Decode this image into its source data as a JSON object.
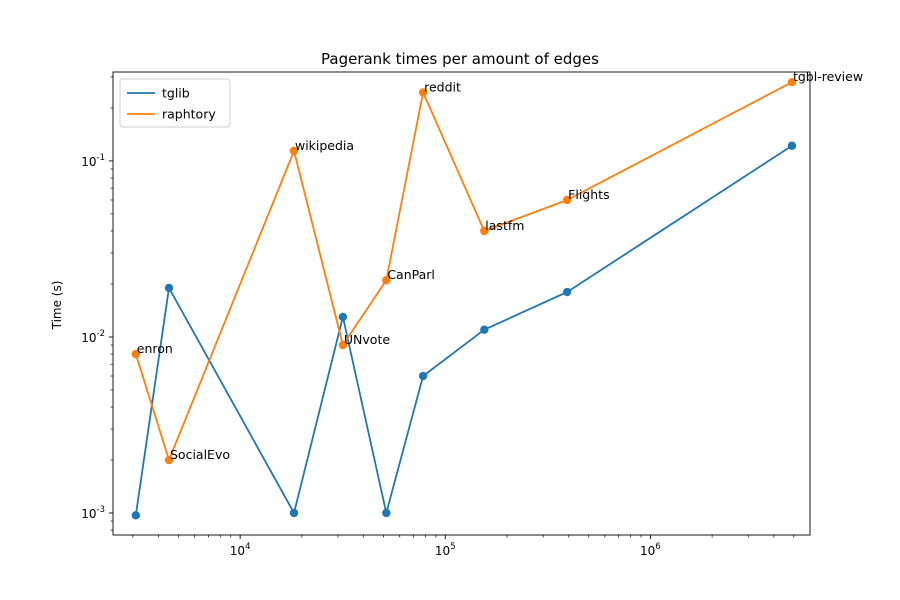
{
  "chart_data": {
    "type": "line",
    "title": "Pagerank times per amount of edges",
    "xlabel": "",
    "ylabel": "Time (s)",
    "xscale": "log",
    "yscale": "log",
    "xlim": [
      2400,
      6000000
    ],
    "ylim": [
      0.00075,
      0.32
    ],
    "grid": false,
    "legend_position": "top-left",
    "x_tick_labels": [
      "10",
      "10",
      "10"
    ],
    "x_tick_exponents": [
      "4",
      "5",
      "6"
    ],
    "x_tick_values": [
      10000,
      100000,
      1000000
    ],
    "y_tick_labels": [
      "10",
      "10",
      "10"
    ],
    "y_tick_exponents": [
      "-3",
      "-2",
      "-1"
    ],
    "y_tick_values": [
      0.001,
      0.01,
      0.1
    ],
    "series": [
      {
        "name": "tglib",
        "color": "#1f77b4",
        "x": [
          3100,
          4500,
          18300,
          31700,
          51600,
          78000,
          155000,
          393000,
          4900000
        ],
        "y": [
          0.00097,
          0.019,
          0.001,
          0.013,
          0.001,
          0.006,
          0.011,
          0.018,
          0.122
        ]
      },
      {
        "name": "raphtory",
        "color": "#ff7f0e",
        "x": [
          3100,
          4500,
          18300,
          31700,
          51600,
          78000,
          155000,
          393000,
          4900000
        ],
        "y": [
          0.008,
          0.002,
          0.114,
          0.009,
          0.021,
          0.245,
          0.04,
          0.06,
          0.28
        ]
      }
    ],
    "annotations": [
      {
        "text": "enron",
        "x": 3100,
        "y": 0.008
      },
      {
        "text": "SocialEvo",
        "x": 4500,
        "y": 0.002
      },
      {
        "text": "wikipedia",
        "x": 18300,
        "y": 0.114
      },
      {
        "text": "UNvote",
        "x": 31700,
        "y": 0.009
      },
      {
        "text": "CanParl",
        "x": 51600,
        "y": 0.021
      },
      {
        "text": "reddit",
        "x": 78000,
        "y": 0.245
      },
      {
        "text": "lastfm",
        "x": 155000,
        "y": 0.04
      },
      {
        "text": "Flights",
        "x": 393000,
        "y": 0.06
      },
      {
        "text": "tgbl-review",
        "x": 4900000,
        "y": 0.28
      }
    ]
  }
}
